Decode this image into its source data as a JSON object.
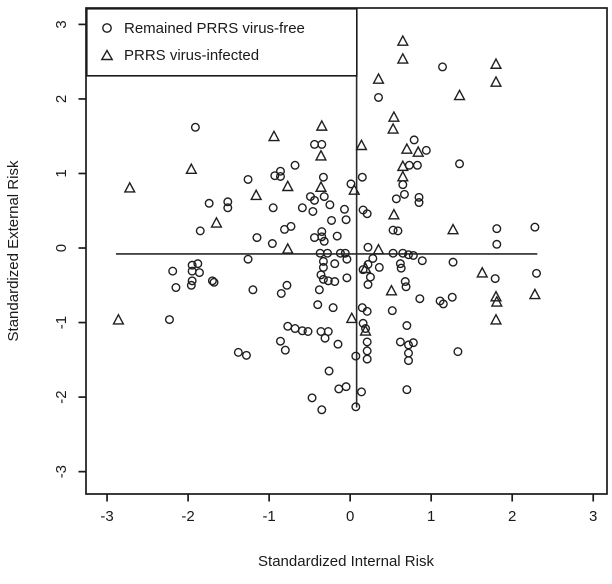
{
  "figure": {
    "background": "#ffffff",
    "ink_color": "#1a1a1a"
  },
  "chart_data": {
    "type": "scatter",
    "title": "",
    "xlabel": "Standardized Internal Risk",
    "ylabel": "Standardized External Risk",
    "xlim": [
      -3.26,
      3.17
    ],
    "ylim": [
      -3.3,
      3.22
    ],
    "x_ticks": [
      -3,
      -2,
      -1,
      0,
      1,
      2,
      3
    ],
    "y_ticks": [
      -3,
      -2,
      -1,
      0,
      1,
      2,
      3
    ],
    "grid": false,
    "legend_position": "top-left",
    "reference_lines": {
      "horizontal": {
        "y": -0.08,
        "x_start": -2.89,
        "x_end": 2.31
      },
      "vertical": {
        "x": 0.08,
        "y_start": -2.14,
        "y_end": 2.31
      }
    },
    "series": [
      {
        "name": "Remained PRRS virus-free",
        "marker": "circle",
        "points": [
          [
            -1.91,
            1.62
          ],
          [
            0.35,
            2.02
          ],
          [
            -0.44,
            1.39
          ],
          [
            -0.35,
            1.39
          ],
          [
            0.79,
            1.45
          ],
          [
            0.94,
            1.31
          ],
          [
            0.73,
            1.11
          ],
          [
            0.83,
            1.11
          ],
          [
            -0.68,
            1.11
          ],
          [
            -0.86,
            1.03
          ],
          [
            -0.93,
            0.97
          ],
          [
            1.14,
            2.43
          ],
          [
            1.35,
            1.13
          ],
          [
            -1.26,
            0.92
          ],
          [
            -1.74,
            0.6
          ],
          [
            -1.51,
            0.62
          ],
          [
            -1.51,
            0.54
          ],
          [
            -1.85,
            0.23
          ],
          [
            -1.26,
            -0.15
          ],
          [
            -2.19,
            -0.31
          ],
          [
            -1.95,
            -0.23
          ],
          [
            -1.88,
            -0.21
          ],
          [
            -1.95,
            -0.31
          ],
          [
            -1.86,
            -0.33
          ],
          [
            -1.95,
            -0.44
          ],
          [
            -1.96,
            -0.5
          ],
          [
            -2.15,
            -0.53
          ],
          [
            -1.7,
            -0.44
          ],
          [
            -1.68,
            -0.46
          ],
          [
            -2.23,
            -0.96
          ],
          [
            -0.86,
            0.96
          ],
          [
            -0.33,
            0.95
          ],
          [
            -0.32,
            0.69
          ],
          [
            -0.49,
            0.69
          ],
          [
            -0.44,
            0.64
          ],
          [
            0.15,
            0.95
          ],
          [
            0.01,
            0.86
          ],
          [
            0.65,
            0.85
          ],
          [
            0.57,
            0.66
          ],
          [
            0.67,
            0.72
          ],
          [
            0.85,
            0.68
          ],
          [
            0.85,
            0.61
          ],
          [
            -0.95,
            0.54
          ],
          [
            -0.59,
            0.54
          ],
          [
            -0.46,
            0.49
          ],
          [
            -0.25,
            0.58
          ],
          [
            0.16,
            0.51
          ],
          [
            0.21,
            0.46
          ],
          [
            -0.07,
            0.52
          ],
          [
            -0.23,
            0.37
          ],
          [
            -0.05,
            0.38
          ],
          [
            -0.81,
            0.25
          ],
          [
            -0.73,
            0.29
          ],
          [
            -0.44,
            0.14
          ],
          [
            -0.35,
            0.22
          ],
          [
            -0.35,
            0.15
          ],
          [
            -0.32,
            0.09
          ],
          [
            -0.16,
            0.16
          ],
          [
            -0.96,
            0.06
          ],
          [
            -1.15,
            0.14
          ],
          [
            0.53,
            0.24
          ],
          [
            0.59,
            0.23
          ],
          [
            -0.12,
            -0.07
          ],
          [
            -0.06,
            -0.07
          ],
          [
            -0.37,
            -0.07
          ],
          [
            -0.28,
            -0.07
          ],
          [
            0.22,
            0.01
          ],
          [
            0.53,
            -0.07
          ],
          [
            0.65,
            -0.07
          ],
          [
            0.72,
            -0.09
          ],
          [
            0.78,
            -0.1
          ],
          [
            0.89,
            -0.17
          ],
          [
            0.22,
            -0.22
          ],
          [
            0.16,
            -0.29
          ],
          [
            0.36,
            -0.26
          ],
          [
            0.62,
            -0.21
          ],
          [
            0.63,
            -0.27
          ],
          [
            0.28,
            -0.14
          ],
          [
            -0.33,
            -0.18
          ],
          [
            -0.33,
            -0.26
          ],
          [
            -0.19,
            -0.21
          ],
          [
            -0.04,
            -0.15
          ],
          [
            -0.36,
            -0.36
          ],
          [
            -0.33,
            -0.42
          ],
          [
            -0.27,
            -0.44
          ],
          [
            -0.19,
            -0.45
          ],
          [
            -0.04,
            -0.4
          ],
          [
            0.25,
            -0.39
          ],
          [
            -0.38,
            -0.56
          ],
          [
            0.22,
            -0.49
          ],
          [
            0.68,
            -0.45
          ],
          [
            0.69,
            -0.52
          ],
          [
            -0.78,
            -0.5
          ],
          [
            -0.85,
            -0.61
          ],
          [
            -1.2,
            -0.56
          ],
          [
            -0.4,
            -0.76
          ],
          [
            -0.21,
            -0.8
          ],
          [
            0.86,
            -0.68
          ],
          [
            0.52,
            -0.84
          ],
          [
            0.15,
            -0.8
          ],
          [
            0.21,
            -0.85
          ],
          [
            0.7,
            -1.04
          ],
          [
            -0.77,
            -1.05
          ],
          [
            -0.68,
            -1.08
          ],
          [
            -0.59,
            -1.11
          ],
          [
            -0.52,
            -1.12
          ],
          [
            -0.36,
            -1.12
          ],
          [
            -0.27,
            -1.12
          ],
          [
            0.16,
            -1.01
          ],
          [
            0.19,
            -1.08
          ],
          [
            1.81,
            0.26
          ],
          [
            1.81,
            0.05
          ],
          [
            2.28,
            0.28
          ],
          [
            1.27,
            -0.19
          ],
          [
            1.79,
            -0.41
          ],
          [
            2.3,
            -0.34
          ],
          [
            1.11,
            -0.71
          ],
          [
            1.15,
            -0.75
          ],
          [
            1.26,
            -0.66
          ],
          [
            -1.38,
            -1.4
          ],
          [
            -1.28,
            -1.44
          ],
          [
            -0.86,
            -1.25
          ],
          [
            -0.8,
            -1.37
          ],
          [
            -0.31,
            -1.21
          ],
          [
            -0.15,
            -1.29
          ],
          [
            0.07,
            -1.45
          ],
          [
            0.21,
            -1.26
          ],
          [
            0.21,
            -1.38
          ],
          [
            0.21,
            -1.49
          ],
          [
            -0.26,
            -1.65
          ],
          [
            -0.14,
            -1.89
          ],
          [
            -0.05,
            -1.86
          ],
          [
            0.14,
            -1.93
          ],
          [
            -0.47,
            -2.01
          ],
          [
            -0.35,
            -2.17
          ],
          [
            0.07,
            -2.13
          ],
          [
            0.62,
            -1.26
          ],
          [
            0.72,
            -1.3
          ],
          [
            0.78,
            -1.27
          ],
          [
            0.72,
            -1.41
          ],
          [
            0.72,
            -1.51
          ],
          [
            0.7,
            -1.9
          ],
          [
            1.33,
            -1.39
          ]
        ]
      },
      {
        "name": "PRRS virus-infected",
        "marker": "triangle",
        "points": [
          [
            -1.96,
            1.05
          ],
          [
            0.65,
            2.77
          ],
          [
            0.65,
            2.53
          ],
          [
            0.35,
            2.26
          ],
          [
            0.54,
            1.75
          ],
          [
            0.53,
            1.59
          ],
          [
            -0.35,
            1.63
          ],
          [
            -0.94,
            1.49
          ],
          [
            -0.36,
            1.23
          ],
          [
            0.14,
            1.37
          ],
          [
            0.7,
            1.32
          ],
          [
            0.84,
            1.28
          ],
          [
            0.65,
            1.09
          ],
          [
            1.8,
            2.46
          ],
          [
            1.8,
            2.22
          ],
          [
            1.35,
            2.04
          ],
          [
            -2.72,
            0.8
          ],
          [
            -1.65,
            0.33
          ],
          [
            -2.86,
            -0.97
          ],
          [
            -0.77,
            0.82
          ],
          [
            -1.16,
            0.7
          ],
          [
            -0.36,
            0.81
          ],
          [
            0.05,
            0.77
          ],
          [
            0.65,
            0.95
          ],
          [
            0.54,
            0.44
          ],
          [
            -0.77,
            -0.02
          ],
          [
            0.35,
            -0.03
          ],
          [
            0.19,
            -0.28
          ],
          [
            0.51,
            -0.58
          ],
          [
            0.02,
            -0.95
          ],
          [
            0.19,
            -1.12
          ],
          [
            1.27,
            0.24
          ],
          [
            1.63,
            -0.34
          ],
          [
            1.8,
            -0.66
          ],
          [
            1.81,
            -0.73
          ],
          [
            2.28,
            -0.63
          ],
          [
            1.8,
            -0.97
          ]
        ]
      }
    ]
  }
}
